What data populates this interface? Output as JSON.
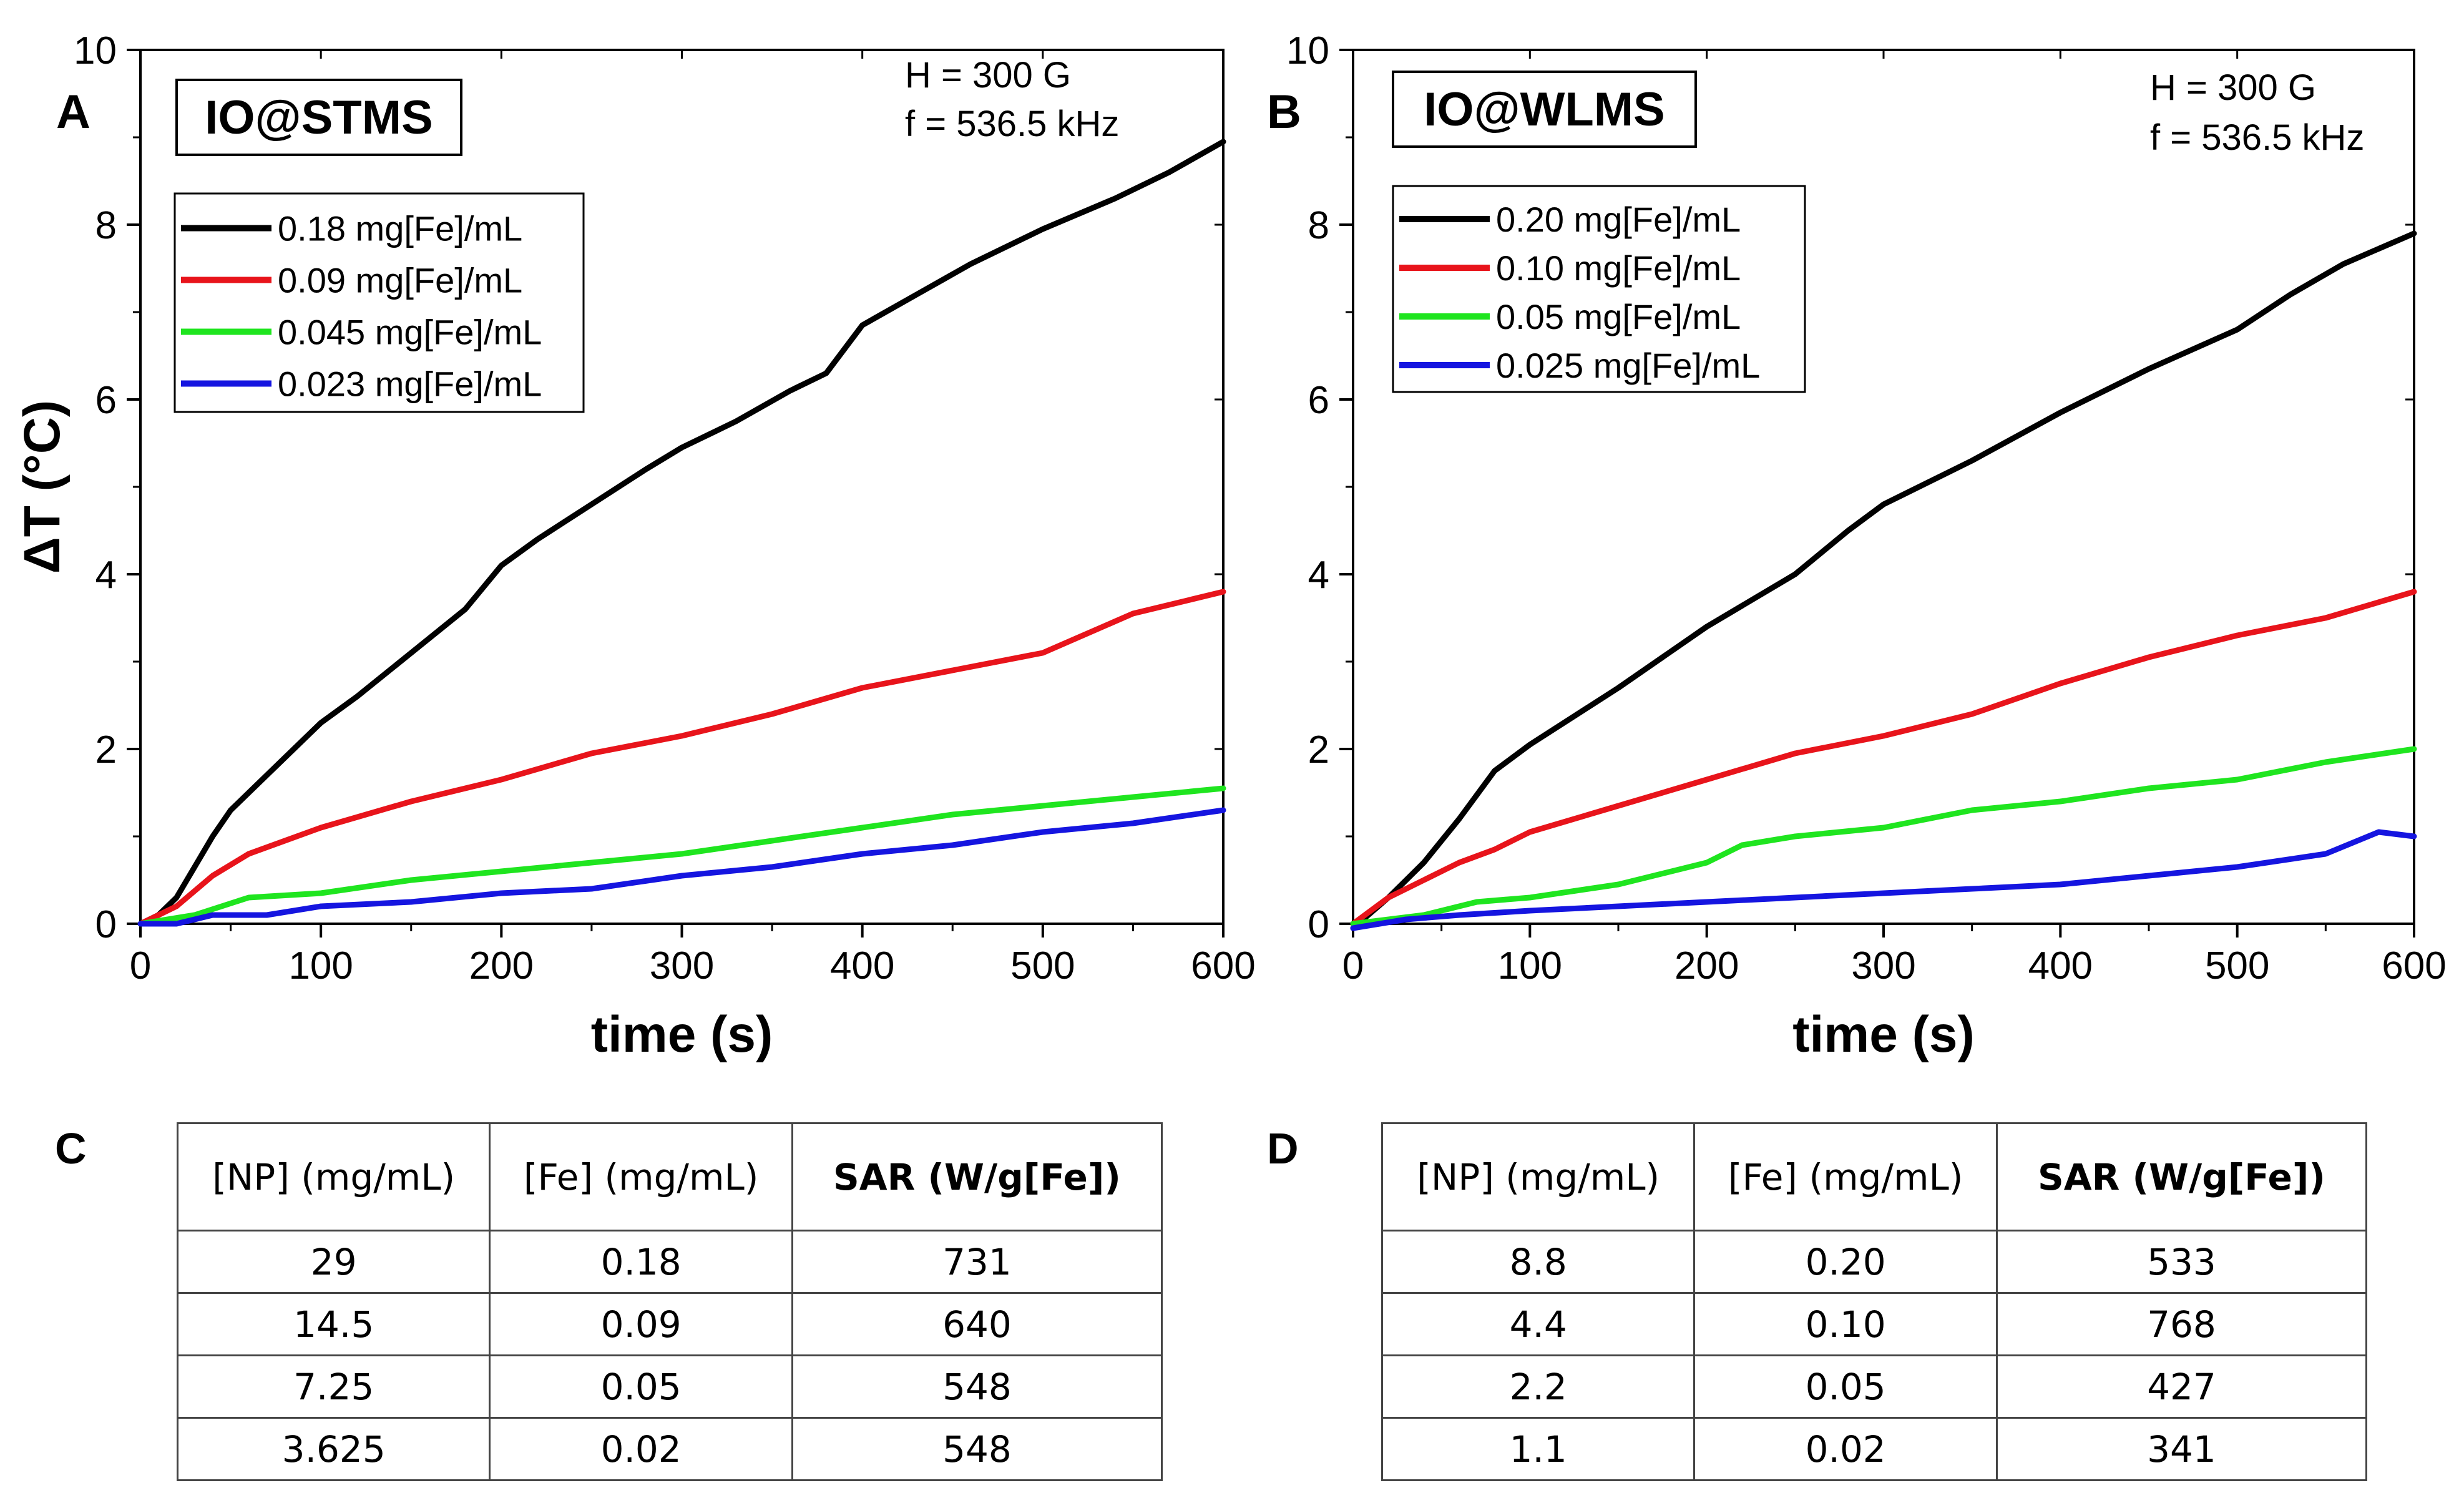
{
  "chart_data": [
    {
      "panel": "A",
      "type": "line",
      "title": "IO@STMS",
      "annotation": [
        "H = 300 G",
        "f = 536.5 kHz"
      ],
      "xlabel": "time (s)",
      "ylabel": "ΔT (°C)",
      "xlim": [
        0,
        600
      ],
      "ylim": [
        0,
        10
      ],
      "xticks": [
        "0",
        "100",
        "200",
        "300",
        "400",
        "500",
        "600"
      ],
      "yticks": [
        "0",
        "2",
        "4",
        "6",
        "8",
        "10"
      ],
      "legend_position": "upper-left",
      "series": [
        {
          "name": "0.18 mg[Fe]/mL",
          "color": "#000000",
          "x": [
            0,
            10,
            20,
            30,
            40,
            50,
            60,
            80,
            100,
            120,
            150,
            180,
            200,
            220,
            250,
            280,
            300,
            330,
            360,
            380,
            400,
            430,
            460,
            500,
            540,
            570,
            600
          ],
          "y": [
            0,
            0.1,
            0.3,
            0.65,
            1.0,
            1.3,
            1.5,
            1.9,
            2.3,
            2.6,
            3.1,
            3.6,
            4.1,
            4.4,
            4.8,
            5.2,
            5.45,
            5.75,
            6.1,
            6.3,
            6.85,
            7.2,
            7.55,
            7.95,
            8.3,
            8.6,
            8.95
          ]
        },
        {
          "name": "0.09 mg[Fe]/mL",
          "color": "#e8141b",
          "x": [
            0,
            20,
            40,
            60,
            80,
            100,
            150,
            200,
            250,
            300,
            350,
            400,
            450,
            500,
            550,
            600
          ],
          "y": [
            0,
            0.2,
            0.55,
            0.8,
            0.95,
            1.1,
            1.4,
            1.65,
            1.95,
            2.15,
            2.4,
            2.7,
            2.9,
            3.1,
            3.55,
            3.8
          ]
        },
        {
          "name": "0.045 mg[Fe]/mL",
          "color": "#1fe51f",
          "x": [
            0,
            30,
            60,
            100,
            150,
            200,
            250,
            300,
            350,
            400,
            450,
            500,
            550,
            600
          ],
          "y": [
            0,
            0.1,
            0.3,
            0.35,
            0.5,
            0.6,
            0.7,
            0.8,
            0.95,
            1.1,
            1.25,
            1.35,
            1.45,
            1.55
          ]
        },
        {
          "name": "0.023 mg[Fe]/mL",
          "color": "#1515e0",
          "x": [
            0,
            20,
            40,
            70,
            100,
            150,
            200,
            250,
            300,
            350,
            400,
            450,
            500,
            550,
            600
          ],
          "y": [
            0,
            0,
            0.1,
            0.1,
            0.2,
            0.25,
            0.35,
            0.4,
            0.55,
            0.65,
            0.8,
            0.9,
            1.05,
            1.15,
            1.3
          ]
        }
      ]
    },
    {
      "panel": "B",
      "type": "line",
      "title": "IO@WLMS",
      "annotation": [
        "H = 300 G",
        "f = 536.5 kHz"
      ],
      "xlabel": "time (s)",
      "ylabel": "",
      "xlim": [
        0,
        600
      ],
      "ylim": [
        0,
        10
      ],
      "xticks": [
        "0",
        "100",
        "200",
        "300",
        "400",
        "500",
        "600"
      ],
      "yticks": [
        "0",
        "2",
        "4",
        "6",
        "8",
        "10"
      ],
      "legend_position": "upper-left",
      "series": [
        {
          "name": "0.20 mg[Fe]/mL",
          "color": "#000000",
          "x": [
            0,
            20,
            40,
            60,
            80,
            100,
            150,
            200,
            250,
            280,
            300,
            350,
            400,
            450,
            500,
            530,
            560,
            600
          ],
          "y": [
            -0.05,
            0.3,
            0.7,
            1.2,
            1.75,
            2.05,
            2.7,
            3.4,
            4.0,
            4.5,
            4.8,
            5.3,
            5.85,
            6.35,
            6.8,
            7.2,
            7.55,
            7.9
          ]
        },
        {
          "name": "0.10 mg[Fe]/mL",
          "color": "#e8141b",
          "x": [
            0,
            20,
            40,
            60,
            80,
            100,
            150,
            200,
            250,
            300,
            350,
            400,
            450,
            500,
            550,
            600
          ],
          "y": [
            0,
            0.3,
            0.5,
            0.7,
            0.85,
            1.05,
            1.35,
            1.65,
            1.95,
            2.15,
            2.4,
            2.75,
            3.05,
            3.3,
            3.5,
            3.8
          ]
        },
        {
          "name": "0.05 mg[Fe]/mL",
          "color": "#1fe51f",
          "x": [
            0,
            20,
            40,
            70,
            100,
            150,
            200,
            220,
            250,
            300,
            350,
            400,
            450,
            500,
            550,
            600
          ],
          "y": [
            0,
            0.05,
            0.1,
            0.25,
            0.3,
            0.45,
            0.7,
            0.9,
            1.0,
            1.1,
            1.3,
            1.4,
            1.55,
            1.65,
            1.85,
            2.0
          ]
        },
        {
          "name": "0.025 mg[Fe]/mL",
          "color": "#1515e0",
          "x": [
            0,
            30,
            60,
            100,
            150,
            200,
            250,
            300,
            350,
            400,
            450,
            500,
            550,
            580,
            600
          ],
          "y": [
            -0.05,
            0.05,
            0.1,
            0.15,
            0.2,
            0.25,
            0.3,
            0.35,
            0.4,
            0.45,
            0.55,
            0.65,
            0.8,
            1.05,
            1.0
          ]
        }
      ]
    }
  ],
  "panel_labels": {
    "c": "C",
    "d": "D"
  },
  "table_c": {
    "headers": [
      "[NP] (mg/mL)",
      "[Fe] (mg/mL)",
      "SAR (W/g[Fe])"
    ],
    "rows": [
      [
        "29",
        "0.18",
        "731"
      ],
      [
        "14.5",
        "0.09",
        "640"
      ],
      [
        "7.25",
        "0.05",
        "548"
      ],
      [
        "3.625",
        "0.02",
        "548"
      ]
    ]
  },
  "table_d": {
    "headers": [
      "[NP] (mg/mL)",
      "[Fe] (mg/mL)",
      "SAR (W/g[Fe])"
    ],
    "rows": [
      [
        "8.8",
        "0.20",
        "533"
      ],
      [
        "4.4",
        "0.10",
        "768"
      ],
      [
        "2.2",
        "0.05",
        "427"
      ],
      [
        "1.1",
        "0.02",
        "341"
      ]
    ]
  }
}
